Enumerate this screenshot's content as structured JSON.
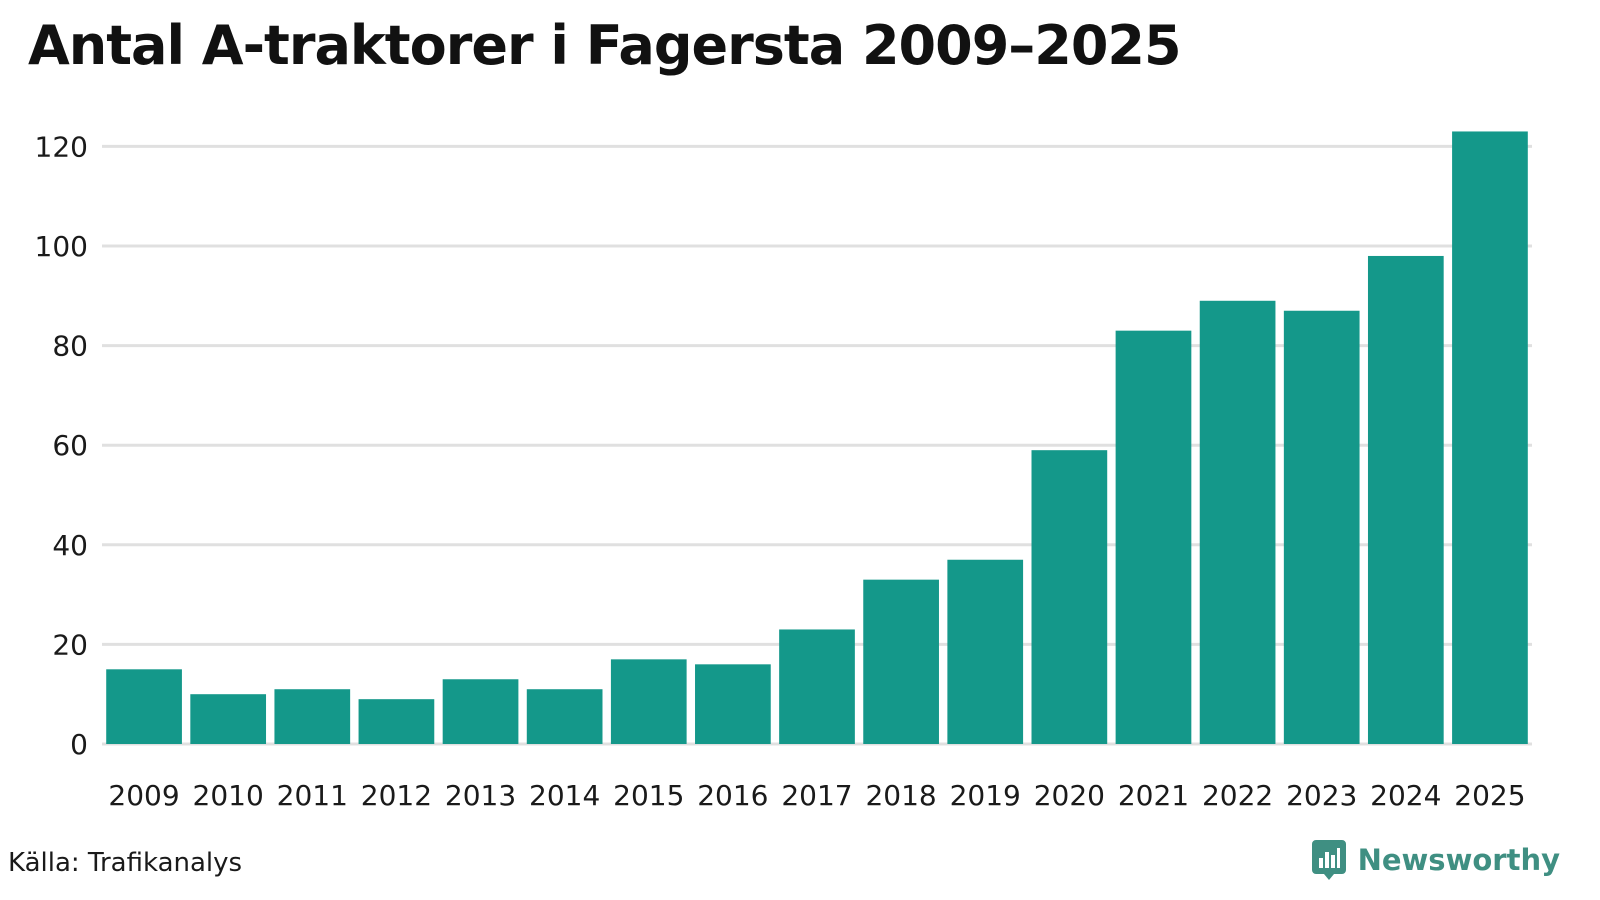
{
  "chart_data": {
    "type": "bar",
    "title": "Antal A-traktorer i Fagersta 2009–2025",
    "xlabel": "",
    "ylabel": "",
    "categories": [
      "2009",
      "2010",
      "2011",
      "2012",
      "2013",
      "2014",
      "2015",
      "2016",
      "2017",
      "2018",
      "2019",
      "2020",
      "2021",
      "2022",
      "2023",
      "2024",
      "2025"
    ],
    "values": [
      15,
      10,
      11,
      9,
      13,
      11,
      17,
      16,
      23,
      33,
      37,
      59,
      83,
      89,
      87,
      98,
      123
    ],
    "ylim": [
      0,
      130
    ],
    "yticks": [
      0,
      20,
      40,
      60,
      80,
      100,
      120
    ],
    "grid": true,
    "legend": "none"
  },
  "colors": {
    "bar": "#14988a",
    "grid": "#e0e0e0",
    "brand": "#3f8f82"
  },
  "footer": {
    "source": "Källa: Trafikanalys",
    "brand": "Newsworthy"
  },
  "brand_icon": "newsworthy-bar-chart-icon"
}
